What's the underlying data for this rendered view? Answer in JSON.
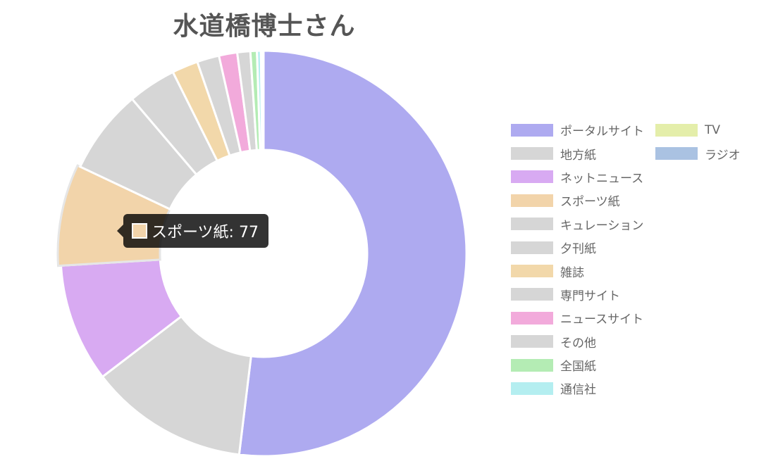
{
  "chart_data": {
    "type": "pie",
    "title": "水道橋博士さん",
    "categories": [
      "ポータルサイト",
      "地方紙",
      "ネットニュース",
      "スポーツ紙",
      "キュレーション",
      "夕刊紙",
      "雑誌",
      "専門サイト",
      "ニュースサイト",
      "その他",
      "全国紙",
      "通信社",
      "TV",
      "ラジオ"
    ],
    "values": [
      500,
      122,
      91,
      77,
      65,
      37,
      20,
      17,
      14,
      10,
      5,
      3,
      1,
      1
    ],
    "colors": [
      "#aeaaf0",
      "#d6d6d6",
      "#d8aaf2",
      "#f2d4aa",
      "#d6d6d6",
      "#d6d6d6",
      "#f2d8aa",
      "#d6d6d6",
      "#f2aadb",
      "#d6d6d6",
      "#b4ecb4",
      "#b4eef0",
      "#e4eeaa",
      "#aac2e2"
    ],
    "legend": "right",
    "tooltip": {
      "label": "スポーツ紙: 77",
      "color": "#f2d4aa"
    }
  }
}
